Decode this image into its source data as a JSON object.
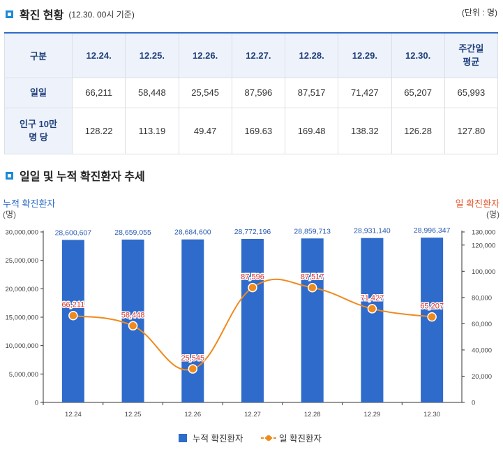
{
  "section1": {
    "title": "확진 현황",
    "subtitle": "(12.30. 00시 기준)",
    "unit": "(단위 : 명)"
  },
  "table": {
    "header": [
      "구분",
      "12.24.",
      "12.25.",
      "12.26.",
      "12.27.",
      "12.28.",
      "12.29.",
      "12.30.",
      "주간일 평균"
    ],
    "rows": [
      {
        "label": "일일",
        "values": [
          "66,211",
          "58,448",
          "25,545",
          "87,596",
          "87,517",
          "71,427",
          "65,207",
          "65,993"
        ]
      },
      {
        "label": "인구 10만 명 당",
        "values": [
          "128.22",
          "113.19",
          "49.47",
          "169.63",
          "169.48",
          "138.32",
          "126.28",
          "127.80"
        ]
      }
    ]
  },
  "section2": {
    "title": "일일 및 누적 확진환자 추세"
  },
  "chart_data": {
    "type": "bar+line",
    "categories": [
      "12.24",
      "12.25",
      "12.26",
      "12.27",
      "12.28",
      "12.29",
      "12.30"
    ],
    "left_axis": {
      "label": "누적 확진환자",
      "unit": "(명)",
      "min": 0,
      "max": 30000000,
      "ticks": [
        "0",
        "5,000,000",
        "10,000,000",
        "15,000,000",
        "20,000,000",
        "25,000,000",
        "30,000,000"
      ],
      "tick_values": [
        0,
        5000000,
        10000000,
        15000000,
        20000000,
        25000000,
        30000000
      ]
    },
    "right_axis": {
      "label": "일 확진환자",
      "unit": "(명)",
      "min": 0,
      "max": 130000,
      "ticks": [
        "0",
        "20,000",
        "40,000",
        "60,000",
        "80,000",
        "100,000",
        "120,000",
        "130,000"
      ],
      "tick_values": [
        0,
        20000,
        40000,
        60000,
        80000,
        100000,
        120000,
        130000
      ]
    },
    "series": [
      {
        "name": "누적 확진환자",
        "kind": "bar",
        "axis": "left",
        "color": "#2e6bcb",
        "values": [
          28600607,
          28659055,
          28684600,
          28772196,
          28859713,
          28931140,
          28996347
        ],
        "labels": [
          "28,600,607",
          "28,659,055",
          "28,684,600",
          "28,772,196",
          "28,859,713",
          "28,931,140",
          "28,996,347"
        ]
      },
      {
        "name": "일 확진환자",
        "kind": "line",
        "axis": "right",
        "color": "#f08a1c",
        "values": [
          66211,
          58448,
          25545,
          87596,
          87517,
          71427,
          65207
        ],
        "labels": [
          "66,211",
          "58,448",
          "25,545",
          "87,596",
          "87,517",
          "71,427",
          "65,207"
        ]
      }
    ],
    "legend": [
      "누적 확진환자",
      "일 확진환자"
    ],
    "legend_position": "bottom-center"
  }
}
